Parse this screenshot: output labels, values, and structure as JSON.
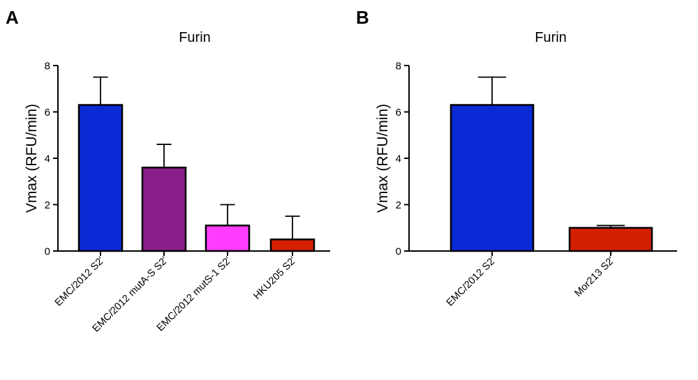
{
  "chart_data": [
    {
      "panel": "A",
      "type": "bar",
      "title": "Furin",
      "xlabel": "",
      "ylabel": "Vmax (RFU/min)",
      "ylim": [
        0,
        8
      ],
      "yticks": [
        0,
        2,
        4,
        6,
        8
      ],
      "categories": [
        "EMC/2012 S2'",
        "EMC/2012 mutA-S S2'",
        "EMC/2012 mutS-1 S2'",
        "HKU205 S2'"
      ],
      "values": [
        6.3,
        3.6,
        1.1,
        0.5
      ],
      "errors": [
        1.2,
        1.0,
        0.9,
        1.0
      ],
      "colors": [
        "#0a2ad6",
        "#8b1e8b",
        "#ff3cff",
        "#d42000"
      ]
    },
    {
      "panel": "B",
      "type": "bar",
      "title": "Furin",
      "xlabel": "",
      "ylabel": "Vmax (RFU/min)",
      "ylim": [
        0,
        8
      ],
      "yticks": [
        0,
        2,
        4,
        6,
        8
      ],
      "categories": [
        "EMC/2012 S2'",
        "Mor213 S2'"
      ],
      "values": [
        6.3,
        1.0
      ],
      "errors": [
        1.2,
        0.1
      ],
      "colors": [
        "#0a2ad6",
        "#d42000"
      ]
    }
  ]
}
